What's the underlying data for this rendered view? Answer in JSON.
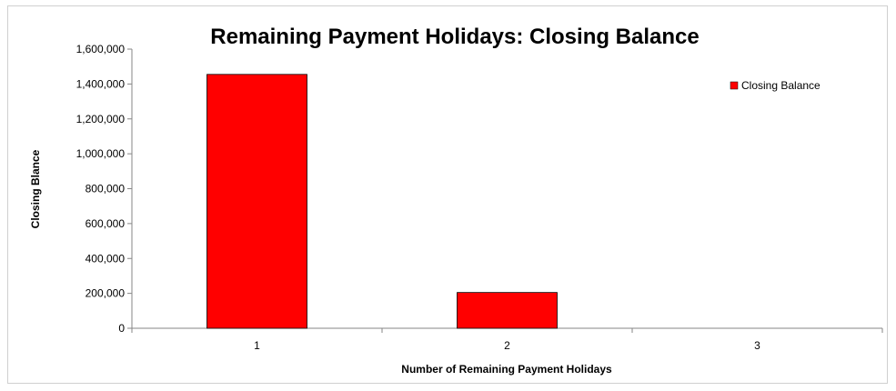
{
  "chart_data": {
    "type": "bar",
    "title": "Remaining Payment Holidays: Closing Balance",
    "xlabel": "Number of Remaining Payment Holidays",
    "ylabel": "Closing Blance",
    "categories": [
      "1",
      "2",
      "3"
    ],
    "series": [
      {
        "name": "Closing Balance",
        "values": [
          1455000,
          205000,
          0
        ],
        "color": "#ff0000"
      }
    ],
    "ylim": [
      0,
      1600000
    ],
    "yticks": [
      "0",
      "200,000",
      "400,000",
      "600,000",
      "800,000",
      "1,000,000",
      "1,200,000",
      "1,400,000",
      "1,600,000"
    ],
    "ytick_values": [
      0,
      200000,
      400000,
      600000,
      800000,
      1000000,
      1200000,
      1400000,
      1600000
    ],
    "grid": false,
    "legend_position": "right"
  }
}
